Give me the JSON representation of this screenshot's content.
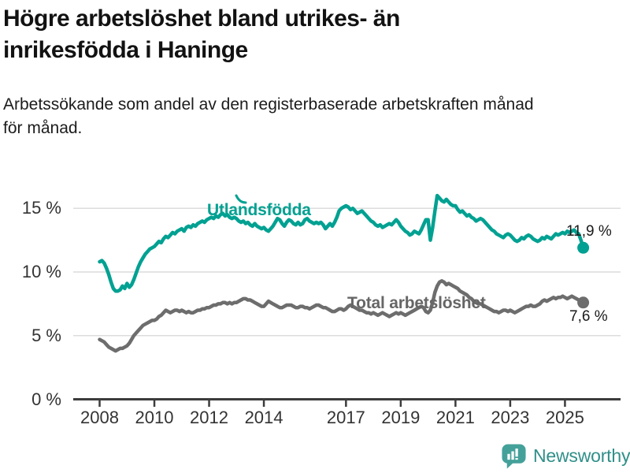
{
  "header": {
    "title_line1": "Högre arbetslöshet bland utrikes- än",
    "title_line2": "inrikesfödda i Haninge",
    "subtitle_line1": "Arbetssökande som andel av den registerbaserade arbetskraften månad",
    "subtitle_line2": "för månad."
  },
  "footer": {
    "brand": "Newsworthy"
  },
  "colors": {
    "teal": "#00a192",
    "gray": "#6d6d6d",
    "axis": "#3c3c3c",
    "grid": "#dcdcdc",
    "value_label": "#1a1a1a",
    "logo_icon": "#44a19a",
    "logo_text": "#2f8f89"
  },
  "chart_data": {
    "type": "line",
    "title": "Högre arbetslöshet bland utrikes- än inrikesfödda i Haninge",
    "subtitle": "Arbetssökande som andel av den registerbaserade arbetskraften månad för månad.",
    "x_unit": "month",
    "x_start": "2008-01",
    "x_end": "2025-09",
    "x_ticks": [
      2008,
      2010,
      2012,
      2014,
      2017,
      2019,
      2021,
      2023,
      2025
    ],
    "y_ticks": [
      0,
      5,
      10,
      15
    ],
    "y_tick_labels": [
      "0 %",
      "5 %",
      "10 %",
      "15 %"
    ],
    "ylim": [
      0,
      16.5
    ],
    "grid": "horizontal",
    "legend_position": "inline-labels",
    "series": [
      {
        "name": "Utlandsfödda",
        "color": "#00a192",
        "end_label": "11,9 %",
        "end_value": 11.9,
        "values": [
          10.8,
          10.9,
          10.7,
          10.3,
          9.8,
          9.2,
          8.7,
          8.5,
          8.5,
          8.6,
          8.9,
          8.7,
          9.1,
          8.8,
          9.0,
          9.4,
          9.9,
          10.4,
          10.8,
          11.1,
          11.4,
          11.6,
          11.8,
          11.9,
          12.0,
          12.2,
          12.4,
          12.3,
          12.6,
          12.8,
          12.7,
          12.9,
          13.1,
          13.0,
          13.2,
          13.3,
          13.4,
          13.2,
          13.5,
          13.6,
          13.5,
          13.7,
          13.6,
          13.8,
          13.9,
          14.0,
          13.9,
          14.1,
          14.2,
          14.3,
          14.2,
          14.4,
          14.3,
          14.5,
          14.6,
          14.4,
          14.5,
          14.3,
          14.2,
          14.3,
          14.2,
          14.0,
          13.9,
          14.0,
          13.8,
          13.9,
          13.7,
          13.6,
          13.8,
          13.6,
          13.5,
          13.4,
          13.5,
          13.3,
          13.2,
          13.4,
          13.6,
          13.9,
          14.2,
          14.1,
          13.8,
          13.6,
          13.9,
          14.1,
          14.0,
          13.8,
          13.7,
          13.9,
          13.7,
          13.8,
          14.1,
          14.2,
          14.0,
          13.9,
          13.8,
          13.9,
          13.8,
          13.9,
          13.7,
          13.4,
          13.6,
          13.8,
          13.6,
          13.9,
          14.3,
          14.8,
          15.0,
          15.1,
          15.2,
          15.1,
          14.9,
          15.0,
          14.8,
          14.6,
          14.7,
          14.8,
          14.6,
          14.4,
          14.2,
          14.0,
          13.9,
          13.7,
          13.6,
          13.7,
          13.5,
          13.6,
          13.7,
          13.8,
          13.7,
          13.9,
          14.1,
          13.9,
          13.6,
          13.4,
          13.2,
          13.1,
          12.9,
          13.0,
          13.2,
          13.1,
          13.0,
          13.3,
          13.7,
          14.1,
          14.1,
          12.5,
          13.5,
          14.8,
          16.0,
          15.8,
          15.6,
          15.5,
          15.7,
          15.5,
          15.3,
          15.2,
          15.2,
          14.9,
          14.7,
          14.8,
          14.6,
          14.4,
          14.5,
          14.3,
          14.2,
          14.0,
          14.1,
          14.2,
          14.1,
          13.9,
          13.7,
          13.5,
          13.3,
          13.2,
          13.0,
          12.9,
          12.8,
          12.7,
          12.9,
          13.0,
          12.9,
          12.7,
          12.5,
          12.4,
          12.5,
          12.7,
          12.6,
          12.8,
          12.9,
          12.8,
          12.6,
          12.5,
          12.4,
          12.5,
          12.7,
          12.6,
          12.8,
          12.7,
          12.6,
          12.8,
          13.0,
          12.9,
          13.0,
          13.1,
          13.0,
          13.2,
          13.1,
          13.2,
          13.3,
          13.1,
          13.0,
          12.5,
          11.9
        ]
      },
      {
        "name": "Total arbetslöshet",
        "color": "#6d6d6d",
        "end_label": "7,6 %",
        "end_value": 7.6,
        "values": [
          4.7,
          4.6,
          4.5,
          4.3,
          4.1,
          4.0,
          3.9,
          3.8,
          3.9,
          4.0,
          4.0,
          4.1,
          4.2,
          4.4,
          4.7,
          5.0,
          5.2,
          5.4,
          5.6,
          5.8,
          5.9,
          6.0,
          6.1,
          6.2,
          6.2,
          6.3,
          6.5,
          6.6,
          6.8,
          7.0,
          6.9,
          6.8,
          6.9,
          7.0,
          7.0,
          6.9,
          7.0,
          6.9,
          6.8,
          6.9,
          6.8,
          6.8,
          6.9,
          7.0,
          7.0,
          7.1,
          7.1,
          7.2,
          7.2,
          7.3,
          7.4,
          7.4,
          7.5,
          7.5,
          7.6,
          7.6,
          7.5,
          7.6,
          7.5,
          7.6,
          7.6,
          7.7,
          7.8,
          7.9,
          7.9,
          7.8,
          7.8,
          7.7,
          7.6,
          7.5,
          7.4,
          7.3,
          7.3,
          7.5,
          7.7,
          7.6,
          7.5,
          7.4,
          7.3,
          7.2,
          7.2,
          7.3,
          7.4,
          7.4,
          7.4,
          7.3,
          7.2,
          7.2,
          7.3,
          7.3,
          7.2,
          7.2,
          7.1,
          7.2,
          7.3,
          7.4,
          7.4,
          7.3,
          7.2,
          7.2,
          7.1,
          7.0,
          6.9,
          6.9,
          7.0,
          7.1,
          7.1,
          7.0,
          7.1,
          7.3,
          7.4,
          7.3,
          7.2,
          7.1,
          7.0,
          7.0,
          6.9,
          6.8,
          6.8,
          6.7,
          6.8,
          6.7,
          6.6,
          6.7,
          6.8,
          6.7,
          6.6,
          6.5,
          6.6,
          6.7,
          6.8,
          6.7,
          6.8,
          6.7,
          6.6,
          6.7,
          6.8,
          6.9,
          7.0,
          7.1,
          7.2,
          7.3,
          7.2,
          6.9,
          6.8,
          7.0,
          7.6,
          8.4,
          8.9,
          9.2,
          9.3,
          9.2,
          9.0,
          9.1,
          9.0,
          8.9,
          8.8,
          8.7,
          8.5,
          8.4,
          8.3,
          8.2,
          8.0,
          7.9,
          7.7,
          7.6,
          7.5,
          7.5,
          7.4,
          7.3,
          7.2,
          7.1,
          7.0,
          6.9,
          6.9,
          6.8,
          6.9,
          7.0,
          7.0,
          6.9,
          7.0,
          6.9,
          6.8,
          6.9,
          7.0,
          7.1,
          7.2,
          7.3,
          7.3,
          7.4,
          7.3,
          7.3,
          7.4,
          7.5,
          7.7,
          7.8,
          7.7,
          7.8,
          7.9,
          8.0,
          7.9,
          8.0,
          8.0,
          8.1,
          8.0,
          7.9,
          8.0,
          8.1,
          8.0,
          7.9,
          7.8,
          7.7,
          7.6
        ]
      }
    ]
  }
}
